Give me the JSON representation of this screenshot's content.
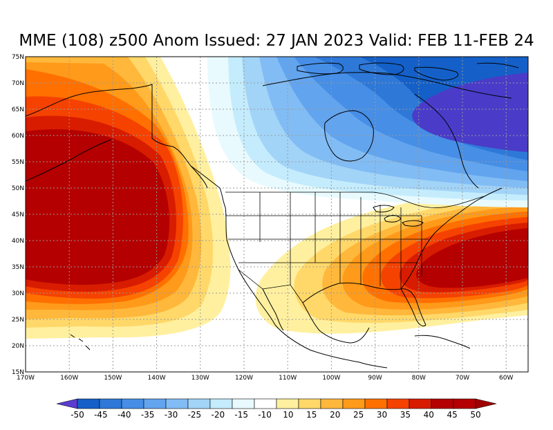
{
  "title": "MME (108) z500 Anom Issued: 27 JAN 2023 Valid: FEB 11-FEB 24",
  "map": {
    "lat_labels": [
      "75N",
      "70N",
      "65N",
      "60N",
      "55N",
      "50N",
      "45N",
      "40N",
      "35N",
      "30N",
      "25N",
      "20N",
      "15N"
    ],
    "lon_labels": [
      "170W",
      "160W",
      "150W",
      "140W",
      "130W",
      "120W",
      "110W",
      "100W",
      "90W",
      "80W",
      "70W",
      "60W"
    ],
    "features": [
      {
        "name": "alaska-pacific-ridge",
        "anomaly": 50
      },
      {
        "name": "eastern-us-ridge",
        "anomaly": 50
      },
      {
        "name": "hudson-bay-trough",
        "anomaly": -50
      }
    ]
  },
  "colorbar": {
    "labels": [
      "-50",
      "-45",
      "-40",
      "-35",
      "-30",
      "-25",
      "-20",
      "-15",
      "-10",
      "10",
      "15",
      "20",
      "25",
      "30",
      "35",
      "40",
      "45",
      "50"
    ],
    "colors": [
      "#5a3cd0",
      "#1460c8",
      "#2e78d8",
      "#468ee6",
      "#62a4ee",
      "#82bcf4",
      "#a2d4f8",
      "#c4ecfc",
      "#e8fafe",
      "#ffffff",
      "#fff0a0",
      "#ffd869",
      "#ffb83c",
      "#ff9a1a",
      "#ff7000",
      "#f54200",
      "#d81c00",
      "#b40000",
      "#a00000"
    ]
  }
}
